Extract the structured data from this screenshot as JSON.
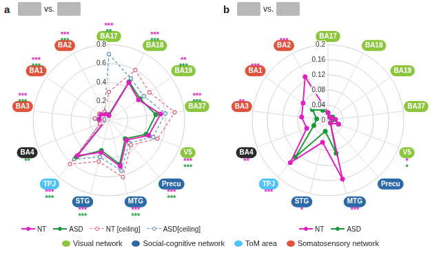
{
  "chart_data": [
    {
      "type": "radar",
      "label": "a",
      "subtitle": "vs.",
      "categories": [
        "BA17",
        "BA18",
        "BA19",
        "BA37",
        "V5",
        "Precu",
        "MTG",
        "STG",
        "TPJ",
        "BA4",
        "BA3",
        "BA1",
        "BA2"
      ],
      "colors": [
        "#8cc63f",
        "#8cc63f",
        "#8cc63f",
        "#8cc63f",
        "#8cc63f",
        "#2c6aa8",
        "#2c6aa8",
        "#2c6aa8",
        "#4fc3f7",
        "#2b2b2b",
        "#e0533d",
        "#e0533d",
        "#e0533d"
      ],
      "series": [
        {
          "name": "NT",
          "color": "#e020c0",
          "marker": "circle",
          "line_style": "solid",
          "values": [
            0.05,
            0.45,
            0.38,
            0.55,
            0.45,
            0.28,
            0.5,
            0.35,
            0.5,
            0.05,
            0.1,
            0.1,
            0.07
          ]
        },
        {
          "name": "ASD",
          "color": "#1a9a3a",
          "marker": "circle",
          "line_style": "solid",
          "values": [
            0.06,
            0.46,
            0.4,
            0.5,
            0.42,
            0.26,
            0.48,
            0.33,
            0.52,
            0.05,
            0.1,
            0.1,
            0.07
          ]
        },
        {
          "name": "NT [ceiling]",
          "color": "#e0607a",
          "marker": "circle",
          "line_style": "dashed",
          "values": [
            0.3,
            0.6,
            0.52,
            0.7,
            0.55,
            0.35,
            0.62,
            0.45,
            0.62,
            0.1,
            0.15,
            0.12,
            0.1
          ]
        },
        {
          "name": "ASD[ceiling]",
          "color": "#5a8fb8",
          "marker": "circle",
          "line_style": "dashed",
          "values": [
            0.7,
            0.5,
            0.45,
            0.6,
            0.5,
            0.32,
            0.55,
            0.4,
            0.55,
            0.1,
            0.15,
            0.12,
            0.1
          ]
        }
      ],
      "significance": {
        "NT": [
          "***",
          "***",
          "**",
          "***",
          "***",
          "***",
          "***",
          "***",
          "***",
          null,
          "***",
          "***",
          "***"
        ],
        "ASD": [
          "**",
          "***",
          "***",
          "***",
          "***",
          "***",
          "***",
          "***",
          "***",
          "**",
          "***",
          "***",
          "***"
        ]
      },
      "ylim": [
        0,
        0.8
      ],
      "yticks": [
        0,
        0.2,
        0.4,
        0.6,
        0.8
      ],
      "grid": true,
      "legend": "bottom"
    },
    {
      "type": "radar",
      "label": "b",
      "subtitle": "vs.",
      "categories": [
        "BA17",
        "BA18",
        "BA19",
        "BA37",
        "V5",
        "Precu",
        "MTG",
        "STG",
        "TPJ",
        "BA4",
        "BA3",
        "BA1",
        "BA2"
      ],
      "colors": [
        "#8cc63f",
        "#8cc63f",
        "#8cc63f",
        "#8cc63f",
        "#8cc63f",
        "#2c6aa8",
        "#2c6aa8",
        "#2c6aa8",
        "#4fc3f7",
        "#2b2b2b",
        "#e0533d",
        "#e0533d",
        "#e0533d"
      ],
      "series": [
        {
          "name": "NT",
          "color": "#e020c0",
          "marker": "circle",
          "line_style": "solid",
          "values": [
            0.02,
            0.01,
            0.01,
            0.02,
            0.03,
            0.01,
            0.16,
            0.06,
            0.15,
            0.06,
            0.07,
            0.08,
            0.13
          ]
        },
        {
          "name": "ASD",
          "color": "#1a9a3a",
          "marker": "circle",
          "line_style": "solid",
          "values": [
            0.02,
            0.01,
            0.015,
            0.015,
            0.03,
            0.01,
            0.09,
            0.03,
            0.13,
            0.04,
            0.03,
            0.05,
            0.03
          ]
        }
      ],
      "significance": {
        "NT": [
          null,
          null,
          null,
          null,
          "*",
          null,
          "***",
          "*",
          "***",
          "**",
          "**",
          "***",
          "***"
        ],
        "ASD": [
          null,
          null,
          null,
          null,
          "*",
          null,
          null,
          null,
          null,
          null,
          null,
          null,
          null
        ]
      },
      "ylim": [
        0,
        0.2
      ],
      "yticks": [
        0,
        0.04,
        0.08,
        0.12,
        0.16,
        0.2
      ],
      "grid": true,
      "legend": "bottom"
    }
  ],
  "network_legend": [
    {
      "name": "Visual network",
      "color": "#8cc63f"
    },
    {
      "name": "Social-cognitive network",
      "color": "#2c6aa8"
    },
    {
      "name": "ToM area",
      "color": "#4fc3f7"
    },
    {
      "name": "Somatosensory network",
      "color": "#e0533d"
    }
  ]
}
